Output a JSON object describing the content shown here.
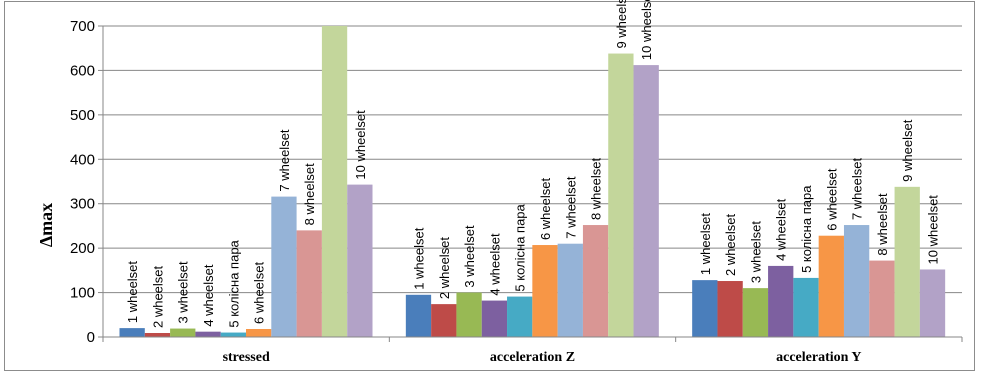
{
  "chart_data": {
    "type": "bar",
    "title": "",
    "xlabel": "",
    "ylabel": "Δmax",
    "ylim": [
      0,
      700
    ],
    "yticks": [
      0,
      100,
      200,
      300,
      400,
      500,
      600,
      700
    ],
    "grid": true,
    "legend": "none",
    "categories": [
      "stressed",
      "acceleration Z",
      "acceleration Y"
    ],
    "series": [
      {
        "name": "1 wheelset",
        "color": "#4A7EBB",
        "values": [
          20,
          95,
          128
        ],
        "labels": [
          "1 wheelset",
          "1 wheelset",
          "1 wheelset"
        ]
      },
      {
        "name": "2 wheelset",
        "color": "#BE4B48",
        "values": [
          9,
          74,
          126
        ],
        "labels": [
          "2 wheelset",
          "2 wheelset",
          "2 wheelset"
        ]
      },
      {
        "name": "3 wheelset",
        "color": "#98B954",
        "values": [
          19,
          100,
          110
        ],
        "labels": [
          "3 wheelset",
          "3 wheelset",
          "3 wheelset"
        ]
      },
      {
        "name": "4 wheelset",
        "color": "#7D60A0",
        "values": [
          12,
          82,
          160
        ],
        "labels": [
          "4 wheelset",
          "4 wheelset",
          "4 wheelset"
        ]
      },
      {
        "name": "5 колісна пара",
        "color": "#46AAC5",
        "values": [
          10,
          91,
          133
        ],
        "labels": [
          "5 колісна пара",
          "5 колісна пара",
          "5 колісна пара"
        ]
      },
      {
        "name": "6 wheelset",
        "color": "#F79646",
        "values": [
          18,
          207,
          228
        ],
        "labels": [
          "6 wheelset",
          "6 wheelset",
          "6 wheelset"
        ]
      },
      {
        "name": "7 wheelset",
        "color": "#95B3D7",
        "values": [
          316,
          210,
          252
        ],
        "labels": [
          "7 wheelset",
          "7 wheelset",
          "7 wheelset"
        ]
      },
      {
        "name": "8 wheelset",
        "color": "#D99694",
        "values": [
          240,
          252,
          172
        ],
        "labels": [
          "8 wheelset",
          "8 wheelset",
          "8 wheelset"
        ]
      },
      {
        "name": "9 wheelset",
        "color": "#C3D69B",
        "values": [
          700,
          638,
          338
        ],
        "labels": [
          "",
          "9 wheelset",
          "9 wheelset"
        ]
      },
      {
        "name": "10 wheelset",
        "color": "#B2A2C7",
        "values": [
          343,
          612,
          152
        ],
        "labels": [
          "10 wheelset",
          "10 wheelset",
          "10 wheelset"
        ]
      }
    ]
  }
}
